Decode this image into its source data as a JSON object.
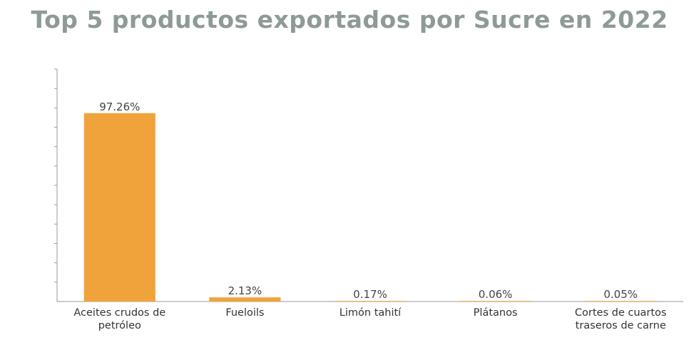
{
  "chart_data": {
    "type": "bar",
    "title": "Top 5 productos exportados por Sucre en 2022",
    "categories": [
      "Aceites crudos de petróleo",
      "Fueloils",
      "Limón tahití",
      "Plátanos",
      "Cortes de cuartos traseros de carne"
    ],
    "category_lines": [
      [
        "Aceites crudos de",
        "petróleo"
      ],
      [
        "Fueloils"
      ],
      [
        "Limón tahití"
      ],
      [
        "Plátanos"
      ],
      [
        "Cortes de cuartos",
        "traseros de carne"
      ]
    ],
    "values": [
      97.26,
      2.13,
      0.17,
      0.06,
      0.05
    ],
    "data_labels": [
      "97.26%",
      "2.13%",
      "0.17%",
      "0.06%",
      "0.05%"
    ],
    "ylim": [
      0,
      120
    ],
    "y_ticks_shown": false,
    "grid": false,
    "legend": "none",
    "xlabel": "",
    "ylabel": "",
    "colors": {
      "bar": "#F0A33A",
      "title": "#8E9A95",
      "axis": "#9a9a9a"
    }
  }
}
